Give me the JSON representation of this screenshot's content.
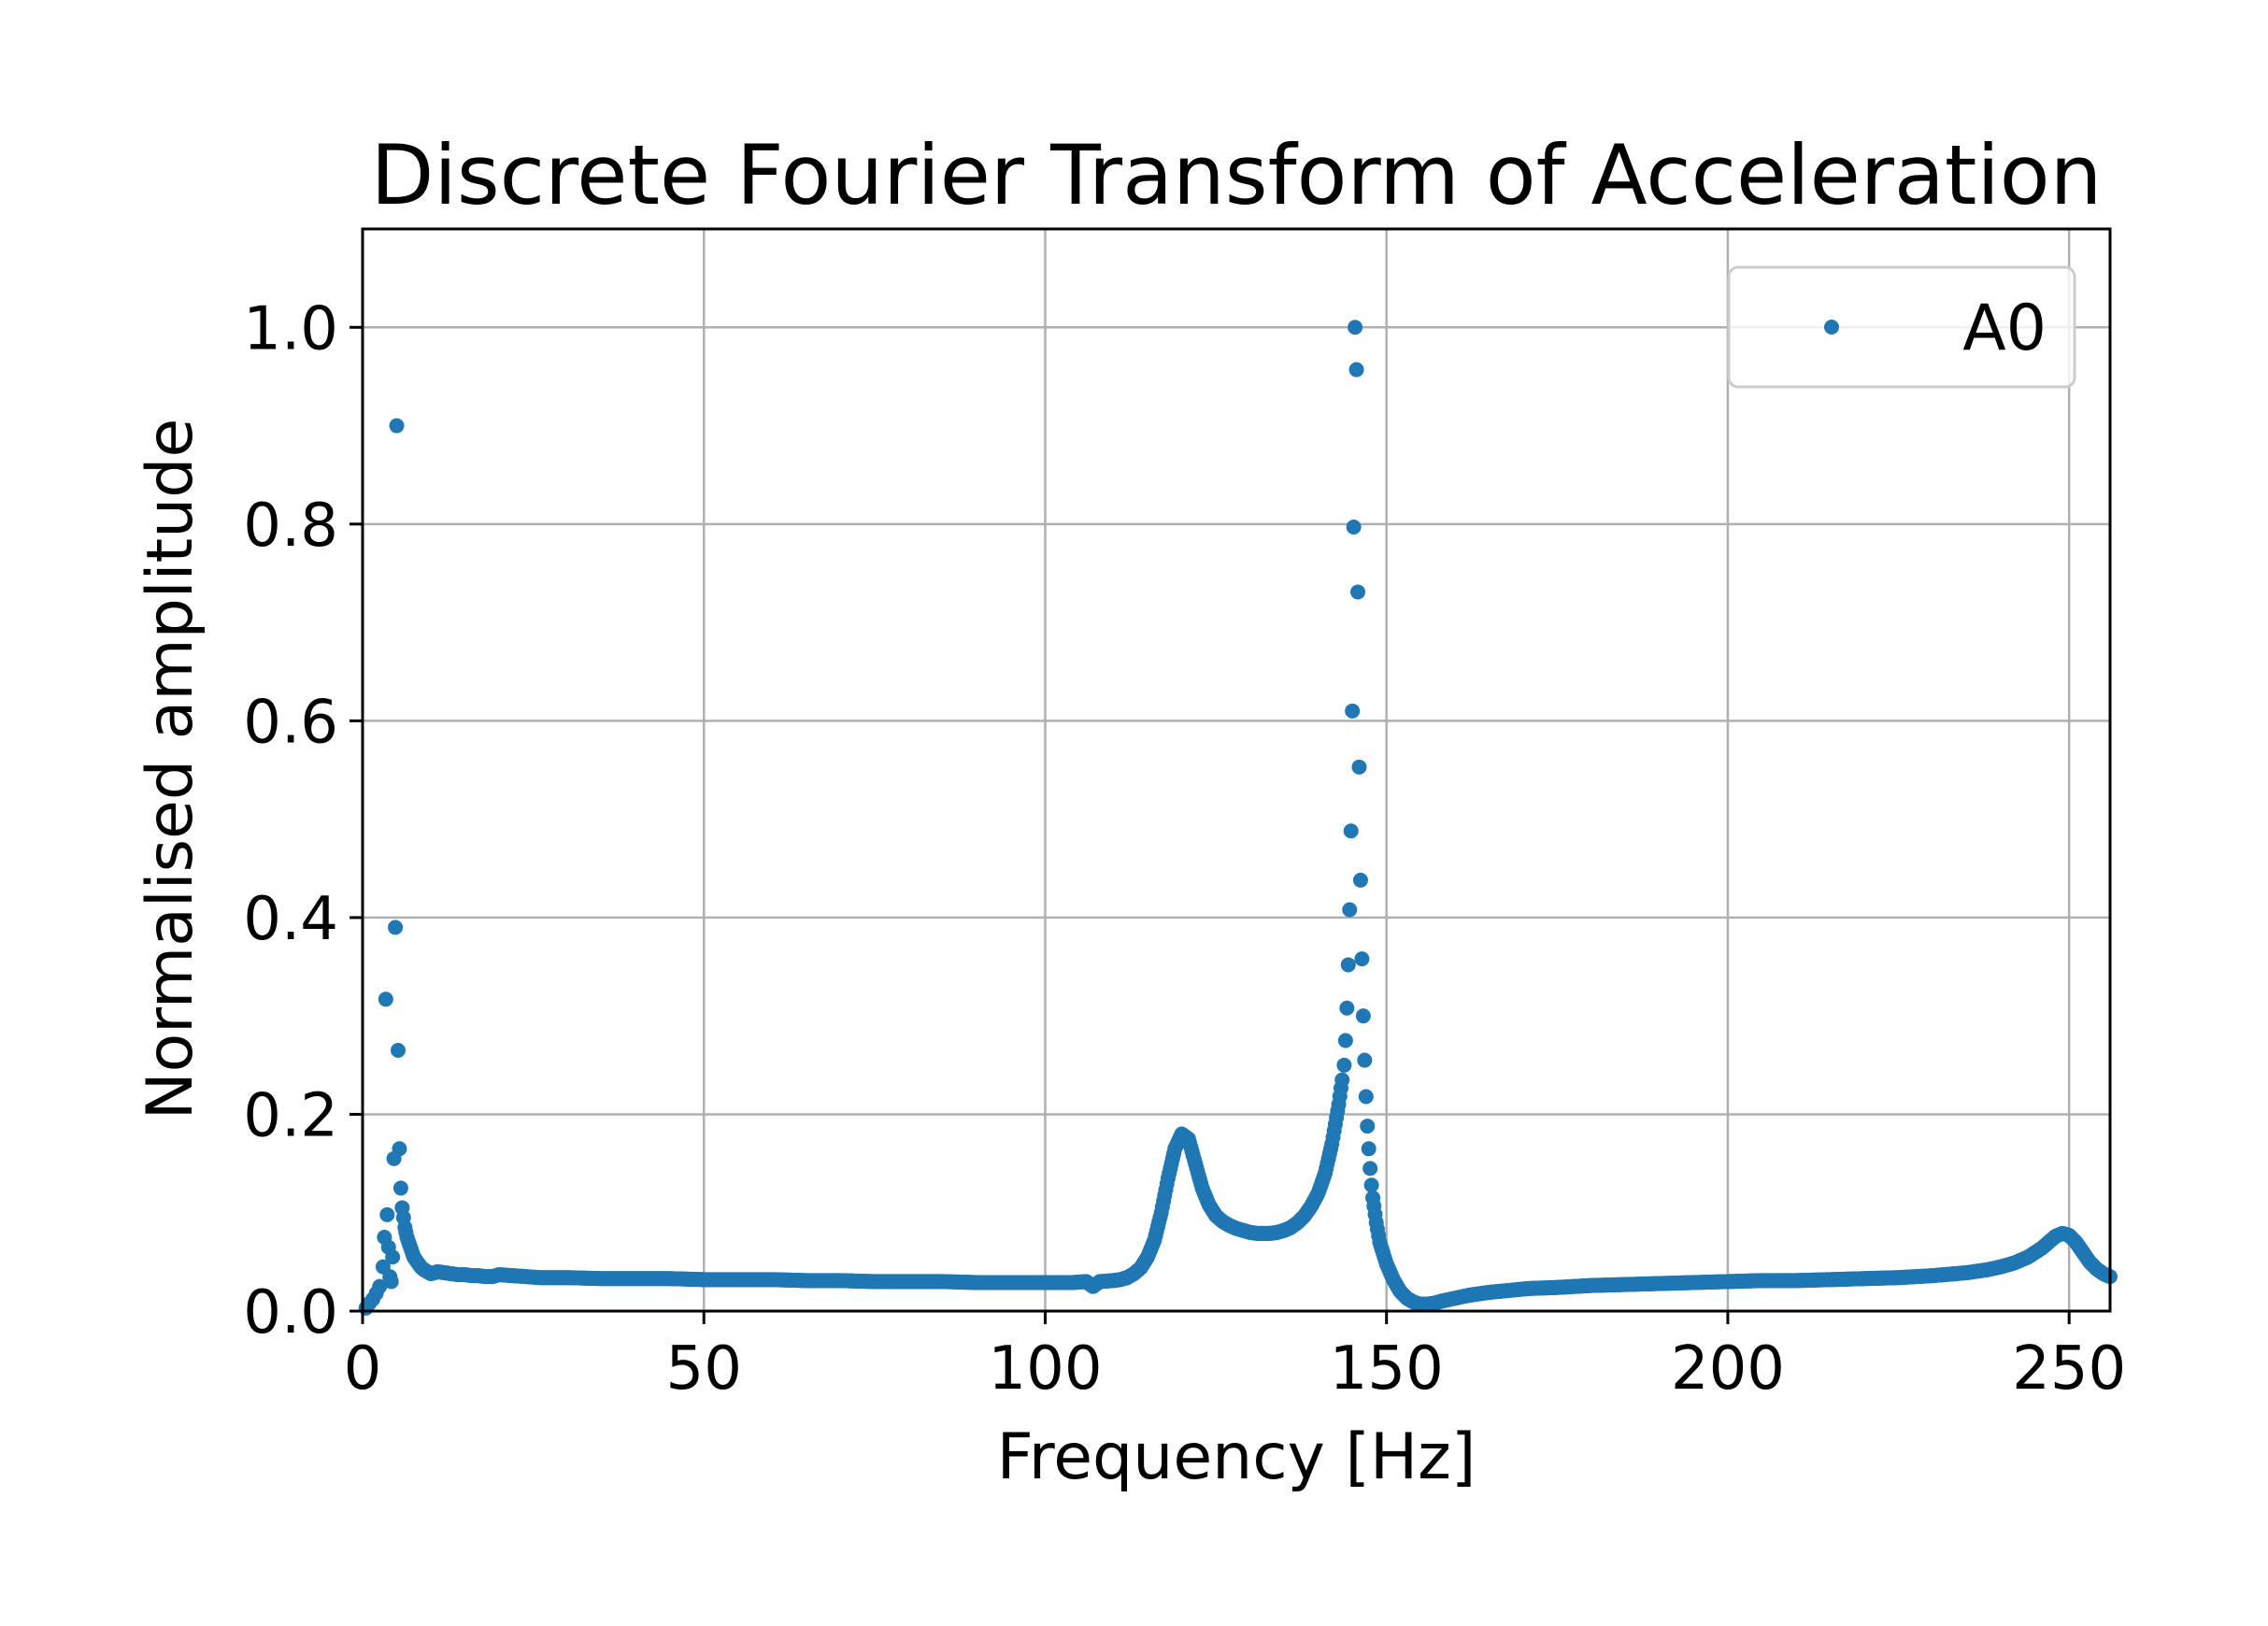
{
  "chart_data": {
    "type": "scatter",
    "title": "Discrete Fourier Transform of Acceleration",
    "xlabel": "Frequency [Hz]",
    "ylabel": "Normalised amplitude",
    "xlim": [
      0,
      256
    ],
    "ylim": [
      0,
      1.1
    ],
    "xticks": [
      0,
      50,
      100,
      150,
      200,
      250
    ],
    "xtick_labels": [
      "0",
      "50",
      "100",
      "150",
      "200",
      "250"
    ],
    "yticks": [
      0.0,
      0.2,
      0.4,
      0.6,
      0.8,
      1.0
    ],
    "ytick_labels": [
      "0.0",
      "0.2",
      "0.4",
      "0.6",
      "0.8",
      "1.0"
    ],
    "grid": true,
    "legend_position": "top-right",
    "series": [
      {
        "name": "A0",
        "color": "#1f77b4",
        "marker": "circle",
        "points": [
          [
            0.5,
            0.003
          ],
          [
            1.0,
            0.008
          ],
          [
            1.5,
            0.012
          ],
          [
            2.0,
            0.018
          ],
          [
            2.5,
            0.025
          ],
          [
            3.0,
            0.045
          ],
          [
            3.2,
            0.075
          ],
          [
            3.4,
            0.317
          ],
          [
            3.6,
            0.098
          ],
          [
            3.8,
            0.065
          ],
          [
            4.0,
            0.035
          ],
          [
            4.2,
            0.03
          ],
          [
            4.4,
            0.055
          ],
          [
            4.6,
            0.155
          ],
          [
            4.8,
            0.39
          ],
          [
            5.0,
            0.9
          ],
          [
            5.2,
            0.265
          ],
          [
            5.4,
            0.165
          ],
          [
            5.6,
            0.125
          ],
          [
            5.8,
            0.105
          ],
          [
            6.0,
            0.095
          ],
          [
            6.2,
            0.085
          ],
          [
            6.5,
            0.075
          ],
          [
            7.0,
            0.065
          ],
          [
            7.5,
            0.055
          ],
          [
            8.0,
            0.05
          ],
          [
            8.5,
            0.045
          ],
          [
            9.0,
            0.042
          ],
          [
            9.5,
            0.04
          ],
          [
            10.0,
            0.038
          ],
          [
            11.0,
            0.04
          ],
          [
            12.0,
            0.039
          ],
          [
            13.0,
            0.038
          ],
          [
            14.0,
            0.037
          ],
          [
            15.0,
            0.037
          ],
          [
            16.0,
            0.036
          ],
          [
            17.0,
            0.036
          ],
          [
            18.0,
            0.035
          ],
          [
            19.0,
            0.035
          ],
          [
            20.0,
            0.037
          ],
          [
            22.0,
            0.036
          ],
          [
            24.0,
            0.035
          ],
          [
            26.0,
            0.034
          ],
          [
            28.0,
            0.034
          ],
          [
            30.0,
            0.034
          ],
          [
            35.0,
            0.033
          ],
          [
            40.0,
            0.033
          ],
          [
            45.0,
            0.033
          ],
          [
            50.0,
            0.032
          ],
          [
            55.0,
            0.032
          ],
          [
            60.0,
            0.032
          ],
          [
            65.0,
            0.031
          ],
          [
            70.0,
            0.031
          ],
          [
            75.0,
            0.03
          ],
          [
            80.0,
            0.03
          ],
          [
            85.0,
            0.03
          ],
          [
            90.0,
            0.029
          ],
          [
            95.0,
            0.029
          ],
          [
            100.0,
            0.029
          ],
          [
            104.0,
            0.029
          ],
          [
            106.0,
            0.03
          ],
          [
            107.0,
            0.025
          ],
          [
            108.0,
            0.03
          ],
          [
            110.0,
            0.031
          ],
          [
            111.0,
            0.032
          ],
          [
            112.0,
            0.034
          ],
          [
            113.0,
            0.038
          ],
          [
            114.0,
            0.044
          ],
          [
            115.0,
            0.055
          ],
          [
            116.0,
            0.072
          ],
          [
            117.0,
            0.1
          ],
          [
            118.0,
            0.135
          ],
          [
            119.0,
            0.165
          ],
          [
            120.0,
            0.18
          ],
          [
            121.0,
            0.175
          ],
          [
            122.0,
            0.15
          ],
          [
            123.0,
            0.125
          ],
          [
            124.0,
            0.108
          ],
          [
            125.0,
            0.097
          ],
          [
            126.0,
            0.091
          ],
          [
            127.0,
            0.087
          ],
          [
            128.0,
            0.084
          ],
          [
            129.0,
            0.082
          ],
          [
            130.0,
            0.08
          ],
          [
            131.0,
            0.079
          ],
          [
            132.0,
            0.079
          ],
          [
            133.0,
            0.079
          ],
          [
            134.0,
            0.08
          ],
          [
            135.0,
            0.082
          ],
          [
            136.0,
            0.085
          ],
          [
            137.0,
            0.09
          ],
          [
            138.0,
            0.097
          ],
          [
            139.0,
            0.107
          ],
          [
            140.0,
            0.12
          ],
          [
            141.0,
            0.14
          ],
          [
            142.0,
            0.17
          ],
          [
            143.0,
            0.21
          ],
          [
            143.5,
            0.235
          ],
          [
            143.8,
            0.25
          ],
          [
            144.0,
            0.275
          ],
          [
            144.2,
            0.308
          ],
          [
            144.4,
            0.352
          ],
          [
            144.6,
            0.408
          ],
          [
            144.8,
            0.488
          ],
          [
            145.0,
            0.61
          ],
          [
            145.2,
            0.797
          ],
          [
            145.4,
            1.0
          ],
          [
            145.6,
            0.957
          ],
          [
            145.8,
            0.731
          ],
          [
            146.0,
            0.553
          ],
          [
            146.2,
            0.438
          ],
          [
            146.4,
            0.358
          ],
          [
            146.6,
            0.3
          ],
          [
            146.8,
            0.255
          ],
          [
            147.0,
            0.218
          ],
          [
            147.2,
            0.188
          ],
          [
            147.4,
            0.165
          ],
          [
            147.6,
            0.145
          ],
          [
            147.8,
            0.128
          ],
          [
            148.0,
            0.115
          ],
          [
            148.5,
            0.09
          ],
          [
            149.0,
            0.07
          ],
          [
            150.0,
            0.048
          ],
          [
            151.0,
            0.032
          ],
          [
            152.0,
            0.02
          ],
          [
            153.0,
            0.013
          ],
          [
            154.0,
            0.009
          ],
          [
            155.0,
            0.007
          ],
          [
            156.0,
            0.007
          ],
          [
            157.0,
            0.008
          ],
          [
            158.0,
            0.01
          ],
          [
            160.0,
            0.013
          ],
          [
            162.0,
            0.016
          ],
          [
            165.0,
            0.019
          ],
          [
            168.0,
            0.021
          ],
          [
            171.0,
            0.023
          ],
          [
            175.0,
            0.024
          ],
          [
            180.0,
            0.026
          ],
          [
            185.0,
            0.027
          ],
          [
            190.0,
            0.028
          ],
          [
            195.0,
            0.029
          ],
          [
            200.0,
            0.03
          ],
          [
            205.0,
            0.031
          ],
          [
            210.0,
            0.031
          ],
          [
            215.0,
            0.032
          ],
          [
            220.0,
            0.033
          ],
          [
            225.0,
            0.034
          ],
          [
            230.0,
            0.036
          ],
          [
            235.0,
            0.039
          ],
          [
            238.0,
            0.042
          ],
          [
            240.0,
            0.045
          ],
          [
            242.0,
            0.049
          ],
          [
            244.0,
            0.055
          ],
          [
            246.0,
            0.064
          ],
          [
            247.0,
            0.07
          ],
          [
            248.0,
            0.076
          ],
          [
            249.0,
            0.079
          ],
          [
            250.0,
            0.077
          ],
          [
            251.0,
            0.07
          ],
          [
            252.0,
            0.06
          ],
          [
            253.0,
            0.05
          ],
          [
            254.0,
            0.043
          ],
          [
            255.0,
            0.038
          ],
          [
            256.0,
            0.035
          ]
        ]
      }
    ]
  }
}
